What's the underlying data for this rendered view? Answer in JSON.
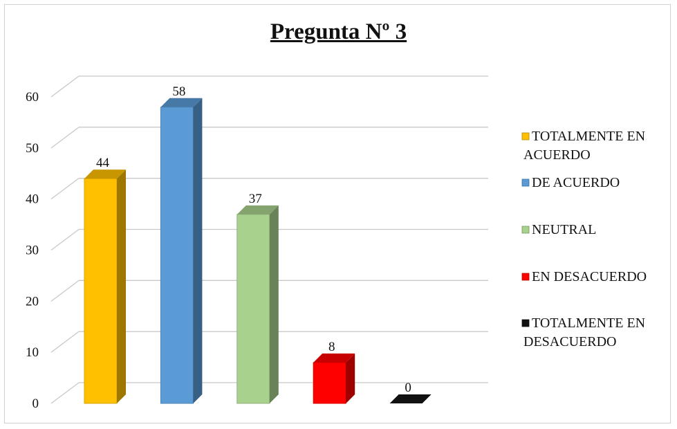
{
  "chart_data": {
    "type": "bar",
    "title": "Pregunta Nº 3",
    "categories": [
      "TOTALMENTE EN ACUERDO",
      "DE ACUERDO",
      "NEUTRAL",
      "EN DESACUERDO",
      "TOTALMENTE EN DESACUERDO"
    ],
    "values": [
      44,
      58,
      37,
      8,
      0
    ],
    "colors": [
      "#ffc000",
      "#5b9bd5",
      "#a9d18e",
      "#ff0000",
      "#111111"
    ],
    "y_ticks": [
      "0",
      "10",
      "20",
      "30",
      "40",
      "50",
      "60"
    ],
    "ylim": [
      0,
      60
    ],
    "grid": true,
    "legend_position": "right",
    "legend": [
      [
        "TOTALMENTE EN",
        "ACUERDO"
      ],
      [
        "DE ACUERDO"
      ],
      [
        "NEUTRAL"
      ],
      [
        "EN DESACUERDO"
      ],
      [
        "TOTALMENTE EN",
        "DESACUERDO"
      ]
    ],
    "data_labels": [
      "44",
      "58",
      "37",
      "8",
      "0"
    ]
  }
}
